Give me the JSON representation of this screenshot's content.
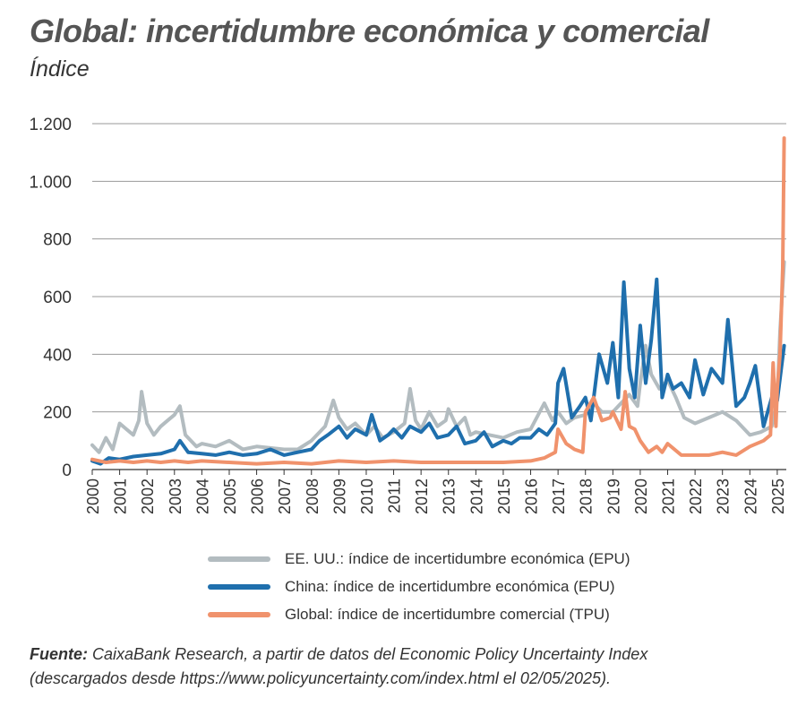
{
  "header": {
    "title": "Global: incertidumbre económica y comercial",
    "subtitle": "Índice"
  },
  "source": {
    "label": "Fuente:",
    "line1": "CaixaBank Research, a partir de datos del Economic Policy Uncertainty Index",
    "line2": "(descargados desde https://www.policyuncertainty.com/index.html el 02/05/2025)."
  },
  "chart_data": {
    "type": "line",
    "ylabel": "Índice",
    "ylim": [
      0,
      1200
    ],
    "yticks": [
      0,
      200,
      400,
      600,
      800,
      1000,
      1200
    ],
    "ytick_labels": [
      "0",
      "200",
      "400",
      "600",
      "800",
      "1.000",
      "1.200"
    ],
    "xlim": [
      2000,
      2025.33
    ],
    "xticks": [
      2000,
      2001,
      2002,
      2003,
      2004,
      2005,
      2006,
      2007,
      2008,
      2009,
      2010,
      2011,
      2012,
      2013,
      2014,
      2015,
      2016,
      2017,
      2018,
      2019,
      2020,
      2021,
      2022,
      2023,
      2024,
      2025
    ],
    "grid": "horizontal",
    "legend_position": "bottom",
    "series": [
      {
        "name": "EE. UU.: índice de incertidumbre económica (EPU)",
        "color": "#b3bcc0",
        "x": [
          2000,
          2000.25,
          2000.5,
          2000.75,
          2001,
          2001.25,
          2001.5,
          2001.7,
          2001.8,
          2002,
          2002.25,
          2002.5,
          2002.75,
          2003,
          2003.2,
          2003.4,
          2003.6,
          2003.8,
          2004,
          2004.5,
          2005,
          2005.5,
          2006,
          2006.5,
          2007,
          2007.5,
          2008,
          2008.5,
          2008.8,
          2009,
          2009.3,
          2009.6,
          2010,
          2010.3,
          2010.6,
          2011,
          2011.4,
          2011.6,
          2011.8,
          2012,
          2012.3,
          2012.6,
          2012.9,
          2013,
          2013.3,
          2013.6,
          2013.8,
          2014,
          2014.5,
          2015,
          2015.5,
          2016,
          2016.5,
          2016.8,
          2017,
          2017.3,
          2017.6,
          2018,
          2018.3,
          2018.6,
          2019,
          2019.3,
          2019.6,
          2019.9,
          2020,
          2020.2,
          2020.4,
          2020.7,
          2021,
          2021.3,
          2021.6,
          2022,
          2022.5,
          2023,
          2023.5,
          2024,
          2024.4,
          2024.8,
          2025,
          2025.1,
          2025.25
        ],
        "values": [
          85,
          60,
          110,
          70,
          160,
          140,
          120,
          170,
          270,
          160,
          120,
          150,
          170,
          190,
          220,
          120,
          100,
          80,
          90,
          80,
          100,
          70,
          80,
          75,
          70,
          70,
          100,
          150,
          240,
          180,
          140,
          160,
          120,
          150,
          110,
          130,
          160,
          280,
          170,
          140,
          200,
          150,
          170,
          210,
          150,
          180,
          120,
          130,
          120,
          110,
          130,
          140,
          230,
          170,
          200,
          160,
          180,
          190,
          230,
          200,
          200,
          230,
          260,
          220,
          300,
          430,
          330,
          280,
          310,
          250,
          180,
          160,
          180,
          200,
          170,
          120,
          130,
          150,
          240,
          480,
          720
        ]
      },
      {
        "name": "China: índice de incertidumbre económica (EPU)",
        "color": "#1f6fad",
        "x": [
          2000,
          2000.3,
          2000.6,
          2001,
          2001.5,
          2002,
          2002.5,
          2003,
          2003.2,
          2003.5,
          2004,
          2004.5,
          2005,
          2005.5,
          2006,
          2006.5,
          2007,
          2007.5,
          2008,
          2008.3,
          2008.6,
          2009,
          2009.3,
          2009.6,
          2010,
          2010.2,
          2010.5,
          2010.8,
          2011,
          2011.3,
          2011.6,
          2012,
          2012.3,
          2012.6,
          2013,
          2013.3,
          2013.6,
          2014,
          2014.3,
          2014.6,
          2015,
          2015.3,
          2015.6,
          2016,
          2016.3,
          2016.6,
          2016.9,
          2017,
          2017.2,
          2017.5,
          2017.8,
          2018,
          2018.2,
          2018.5,
          2018.8,
          2019,
          2019.2,
          2019.4,
          2019.6,
          2019.8,
          2020,
          2020.2,
          2020.4,
          2020.6,
          2020.8,
          2021,
          2021.2,
          2021.5,
          2021.8,
          2022,
          2022.3,
          2022.6,
          2023,
          2023.2,
          2023.5,
          2023.8,
          2024,
          2024.2,
          2024.5,
          2024.8,
          2025,
          2025.25
        ],
        "values": [
          30,
          20,
          40,
          35,
          45,
          50,
          55,
          70,
          100,
          60,
          55,
          50,
          60,
          50,
          55,
          70,
          50,
          60,
          70,
          100,
          120,
          150,
          110,
          140,
          120,
          190,
          100,
          120,
          140,
          110,
          150,
          130,
          160,
          110,
          120,
          150,
          90,
          100,
          130,
          80,
          100,
          90,
          110,
          110,
          140,
          120,
          160,
          300,
          350,
          180,
          220,
          250,
          170,
          400,
          300,
          440,
          250,
          650,
          350,
          250,
          500,
          300,
          450,
          660,
          250,
          330,
          280,
          300,
          250,
          380,
          260,
          350,
          300,
          520,
          220,
          250,
          300,
          360,
          150,
          250,
          240,
          430
        ]
      },
      {
        "name": "Global: índice de incertidumbre comercial (TPU)",
        "color": "#f0926c",
        "x": [
          2000,
          2000.5,
          2001,
          2001.5,
          2002,
          2002.5,
          2003,
          2003.5,
          2004,
          2005,
          2006,
          2007,
          2008,
          2009,
          2010,
          2011,
          2012,
          2013,
          2014,
          2015,
          2016,
          2016.5,
          2016.9,
          2017,
          2017.3,
          2017.6,
          2017.9,
          2018,
          2018.3,
          2018.6,
          2018.9,
          2019,
          2019.3,
          2019.45,
          2019.6,
          2019.8,
          2020,
          2020.3,
          2020.6,
          2020.8,
          2021,
          2021.5,
          2022,
          2022.5,
          2023,
          2023.5,
          2024,
          2024.5,
          2024.75,
          2024.85,
          2024.95,
          2025,
          2025.1,
          2025.2,
          2025.25
        ],
        "values": [
          35,
          25,
          30,
          25,
          30,
          25,
          30,
          25,
          30,
          25,
          20,
          25,
          20,
          30,
          25,
          30,
          25,
          25,
          25,
          25,
          30,
          40,
          60,
          140,
          90,
          70,
          60,
          200,
          250,
          170,
          180,
          200,
          140,
          270,
          150,
          140,
          100,
          60,
          80,
          60,
          90,
          50,
          50,
          50,
          60,
          50,
          80,
          100,
          120,
          370,
          150,
          280,
          400,
          700,
          1150
        ]
      }
    ]
  }
}
